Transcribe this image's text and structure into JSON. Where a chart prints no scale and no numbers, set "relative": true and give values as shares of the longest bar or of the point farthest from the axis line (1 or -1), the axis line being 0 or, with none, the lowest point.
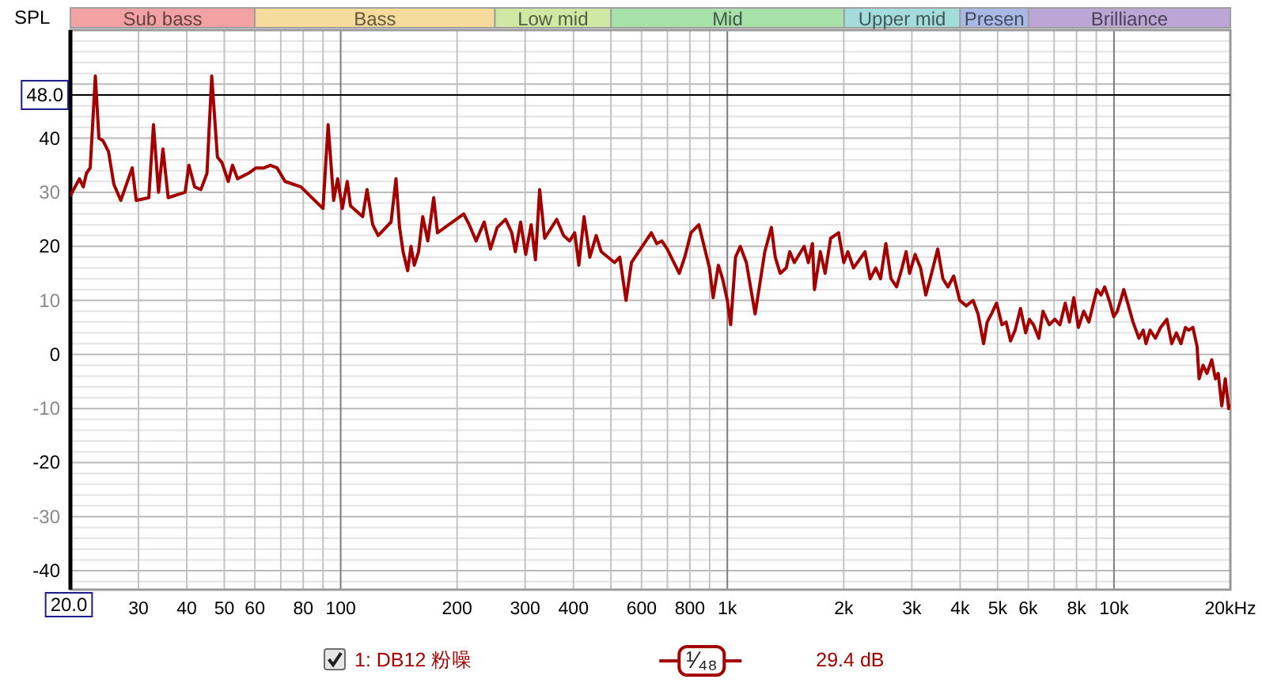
{
  "chart_data": [
    {
      "type": "bar",
      "orientation": "horizontal",
      "stacked": true,
      "relative": true,
      "categories": [
        null
      ],
      "series": [
        {
          "name": "Sub bass",
          "color": "#f2a2a2",
          "values": [
            0.159
          ]
        },
        {
          "name": "Bass",
          "color": "#f6dc9c",
          "values": [
            0.207
          ]
        },
        {
          "name": "Low mid",
          "color": "#cfe8a4",
          "values": [
            0.1
          ]
        },
        {
          "name": "Mid",
          "color": "#a6e2aa",
          "values": [
            0.201
          ]
        },
        {
          "name": "Upper mid",
          "color": "#a4dcdc",
          "values": [
            0.1
          ]
        },
        {
          "name": "Presen",
          "color": "#a9b9e6",
          "values": [
            0.059
          ]
        },
        {
          "name": "Brilliance",
          "color": "#bba6d6",
          "values": [
            0.174
          ]
        }
      ]
    },
    {
      "type": "line",
      "ylabel": "SPL",
      "xlabel": "Hz",
      "log": "x",
      "grid": true,
      "legend": "bottom",
      "line_style": "solid",
      "xlim": [
        20,
        20000
      ],
      "xticks": [
        30,
        40,
        50,
        60,
        {
          "value": 70,
          "label": null
        },
        80,
        {
          "value": 90,
          "label": null
        },
        100,
        200,
        300,
        400,
        {
          "value": 500,
          "label": null
        },
        600,
        {
          "value": 700,
          "label": null
        },
        800,
        {
          "value": 900,
          "label": null
        },
        {
          "value": 1000,
          "label": "1k"
        },
        {
          "value": 2000,
          "label": "2k"
        },
        {
          "value": 3000,
          "label": "3k"
        },
        {
          "value": 4000,
          "label": "4k"
        },
        {
          "value": 5000,
          "label": "5k"
        },
        {
          "value": 6000,
          "label": "6k"
        },
        {
          "value": 7000,
          "label": null
        },
        {
          "value": 8000,
          "label": "8k"
        },
        {
          "value": 9000,
          "label": null
        },
        {
          "value": 10000,
          "label": "10k"
        },
        {
          "value": 20000,
          "label": "20k"
        }
      ],
      "ylim": [
        -43.5,
        60
      ],
      "yticks": [
        -40,
        -30,
        -20,
        -10,
        0,
        10,
        20,
        30,
        40,
        {
          "value": 50,
          "label": null
        }
      ],
      "ref_lines": [
        {
          "axis": "y",
          "value": 48,
          "label": "48.0",
          "color": "#000000"
        }
      ],
      "annotations": [
        {
          "text": "20.0",
          "x": 20
        },
        "¹⁄₄₈",
        "29.4 dB"
      ],
      "x": [
        20,
        21.1,
        21.6,
        22,
        22.5,
        23.2,
        23.7,
        24.3,
        25.1,
        25.9,
        27,
        28.9,
        29.6,
        31.9,
        32.8,
        33.8,
        34.7,
        35.8,
        39.6,
        40.5,
        41.9,
        43.5,
        45.1,
        46.4,
        48,
        49.3,
        51.2,
        52.5,
        54.1,
        57.7,
        60.4,
        63.3,
        65.8,
        68.5,
        71.8,
        78.9,
        90,
        92.8,
        95.9,
        98.2,
        101,
        104,
        106,
        114,
        117,
        121,
        125,
        135,
        139,
        142,
        145,
        149,
        152,
        155,
        159,
        163,
        168,
        174,
        178,
        199,
        208,
        215,
        224,
        235,
        244,
        254,
        267,
        277,
        283,
        292,
        301,
        311,
        319,
        327,
        337,
        362,
        377,
        391,
        403,
        413,
        426,
        441,
        458,
        472,
        511,
        527,
        547,
        565,
        636,
        657,
        677,
        699,
        751,
        776,
        805,
        844,
        899,
        919,
        948,
        972,
        1000,
        1020,
        1050,
        1080,
        1120,
        1180,
        1210,
        1250,
        1300,
        1330,
        1370,
        1420,
        1450,
        1490,
        1580,
        1620,
        1660,
        1680,
        1740,
        1790,
        1850,
        1940,
        2000,
        2050,
        2120,
        2270,
        2340,
        2420,
        2490,
        2570,
        2650,
        2740,
        2830,
        2900,
        2960,
        3060,
        3160,
        3260,
        3360,
        3500,
        3610,
        3720,
        3850,
        3990,
        4150,
        4320,
        4450,
        4600,
        4700,
        4820,
        4970,
        5130,
        5260,
        5400,
        5550,
        5730,
        5910,
        6040,
        6190,
        6390,
        6550,
        6800,
        7030,
        7250,
        7480,
        7670,
        7870,
        8090,
        8350,
        8610,
        9030,
        9260,
        9460,
        9770,
        9980,
        10200,
        10600,
        10900,
        11200,
        11600,
        11900,
        12100,
        12400,
        12800,
        13200,
        13700,
        14100,
        14500,
        14900,
        15300,
        15600,
        16000,
        16400,
        16600,
        17000,
        17400,
        17900,
        18300,
        18600,
        19000,
        19400,
        19800,
        20000
      ],
      "series": [
        {
          "name": "1: DB12 粉噪",
          "color": "#a50000",
          "values": [
            29.4,
            32.5,
            31,
            33.5,
            34.5,
            51.5,
            40,
            39.5,
            37.5,
            31.5,
            28.5,
            34.5,
            28.5,
            29,
            42.5,
            30,
            38,
            29,
            30,
            35,
            31,
            30.5,
            33.5,
            51.5,
            36.5,
            35.5,
            32,
            35,
            32.5,
            33.5,
            34.5,
            34.5,
            35,
            34.5,
            32,
            31,
            27,
            42.5,
            28.5,
            32.5,
            27,
            32,
            27.5,
            25.5,
            30.5,
            24,
            22,
            24.5,
            32.5,
            23.5,
            19,
            15.5,
            20,
            16.5,
            19,
            25.5,
            21,
            29,
            22.5,
            25,
            26,
            24,
            21,
            24.5,
            19.5,
            23.5,
            25,
            22.5,
            19,
            24.5,
            18.5,
            24,
            17.5,
            30.5,
            21.5,
            25,
            22,
            21,
            22.5,
            16.5,
            25.5,
            18,
            22,
            19,
            17,
            18,
            10,
            17,
            22.5,
            20.5,
            21,
            19.5,
            15,
            18,
            22.5,
            24,
            16,
            10.5,
            16.5,
            14,
            10,
            5.5,
            18,
            20,
            17,
            7.5,
            12.5,
            19,
            23.5,
            18,
            15,
            16,
            19,
            17,
            20,
            17,
            20.5,
            12,
            19,
            15,
            21.5,
            22.5,
            17,
            19,
            16,
            19,
            14,
            16,
            14,
            20.5,
            14,
            12.5,
            16,
            19,
            15,
            18.5,
            16,
            11,
            14.5,
            19.5,
            14,
            12.5,
            14.5,
            10,
            9,
            10,
            7.5,
            2,
            6,
            7.5,
            9.5,
            5.5,
            6,
            2.5,
            4.5,
            8.5,
            4,
            6.5,
            5.5,
            3,
            8,
            5.5,
            6.5,
            5.5,
            9.5,
            6,
            10.5,
            5,
            8,
            6,
            12,
            11,
            12.5,
            9.5,
            7,
            8,
            12,
            9,
            6,
            3,
            4.5,
            2,
            4.5,
            3,
            5,
            6.5,
            2,
            4,
            2,
            5,
            4.5,
            5,
            1.5,
            -4.5,
            -2,
            -3.5,
            -1,
            -4.5,
            -3.5,
            -9.5,
            -4.5,
            -10,
            -9.5
          ]
        }
      ]
    }
  ]
}
